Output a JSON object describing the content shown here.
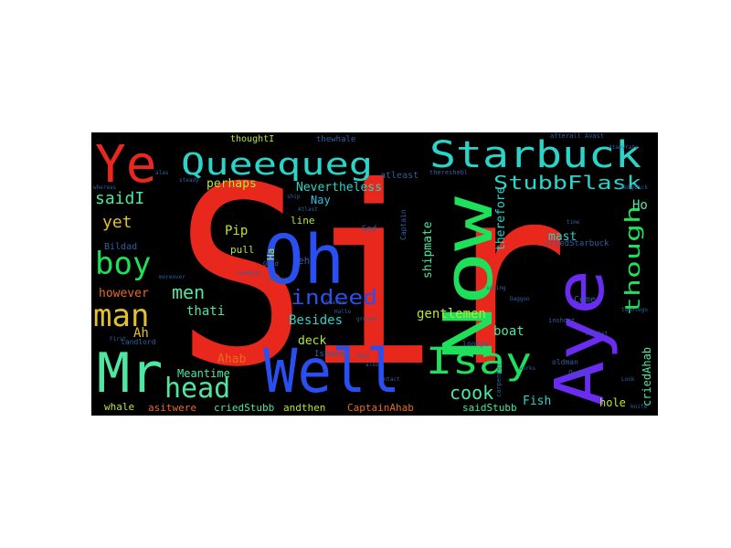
{
  "palette": {
    "background": "#000000",
    "page": "#ffffff",
    "red": "#e8281c",
    "blue": "#2a4ff0",
    "violet": "#6a2cf0",
    "teal": "#2ad4c8",
    "green": "#1ee05a",
    "lime": "#b8e830",
    "mint": "#4ee6a0",
    "orange": "#e86a20",
    "gold": "#e0c030",
    "navy": "#3060a0",
    "cyan": "#30c0e0"
  },
  "words": {
    "sir": "Sir",
    "oh": "Oh",
    "well": "Well",
    "now": "Now",
    "aye": "Aye",
    "ye": "Ye",
    "mr": "Mr",
    "queequeg": "Queequeg",
    "starbuck": "Starbuck",
    "stubbflask": "StubbFlask",
    "boy": "boy",
    "man": "man",
    "head": "head",
    "isay": "Isay",
    "indeed": "indeed",
    "saidi": "saidI",
    "yet": "yet",
    "men": "men",
    "though": "though",
    "cook": "cook",
    "perhaps": "perhaps",
    "nevertheless": "Nevertheless",
    "nay": "Nay",
    "pip": "Pip",
    "ah": "Ah",
    "thati": "thati",
    "besides": "Besides",
    "however": "however",
    "gentlemen": "gentlemen",
    "boat": "boat",
    "deck": "deck",
    "mast": "mast",
    "therefore": "therefore",
    "shipmate": "shipmate",
    "criedahab": "criedAhab",
    "ho": "Ho",
    "ahab": "Ahab",
    "meantime": "Meantime",
    "fish": "Fish",
    "hole": "hole",
    "whale": "whale",
    "asitwere": "asitwere",
    "criedstubb": "criedStubb",
    "andthen": "andthen",
    "captainahab": "CaptainAhab",
    "saidstubb": "saidStubb",
    "thoughti": "thoughtI",
    "thewhale": "thewhale",
    "atleast": "atleast",
    "bildad": "Bildad",
    "pull": "pull",
    "ha": "Ha",
    "line": "line",
    "eh": "eh",
    "god": "God",
    "come": "Come",
    "criedstarbuck": "criedStarbuck",
    "captain": "Captain",
    "ishmael": "Ishmael",
    "landlord": "landlord",
    "lookye": "lookye",
    "avast": "Avast",
    "afterall": "afterall",
    "thereshe": "thereshebl",
    "mobydick": "MobyDick",
    "carpenter": "carpenter",
    "oldman": "oldman",
    "quick": "Quick",
    "first": "First",
    "hallo": "Hallo",
    "ground": "ground",
    "starter": "Starter",
    "away": "Away",
    "spring": "spring",
    "intact": "intact",
    "whereas": "whereas",
    "steady": "steady",
    "alas": "alas",
    "time": "time",
    "atlast": "Atlast",
    "ship": "ship",
    "moreover": "moreover",
    "goodbye": "Goodbye",
    "someone": "someone",
    "inshort": "inshort",
    "tashtego": "tashtego",
    "daggoo": "Daggoo",
    "also": "also",
    "works": "works",
    "knife": "knife",
    "look": "Look",
    "thinkst": "thinkst",
    "good": "Good",
    "anyrate": "Atanyrate"
  }
}
